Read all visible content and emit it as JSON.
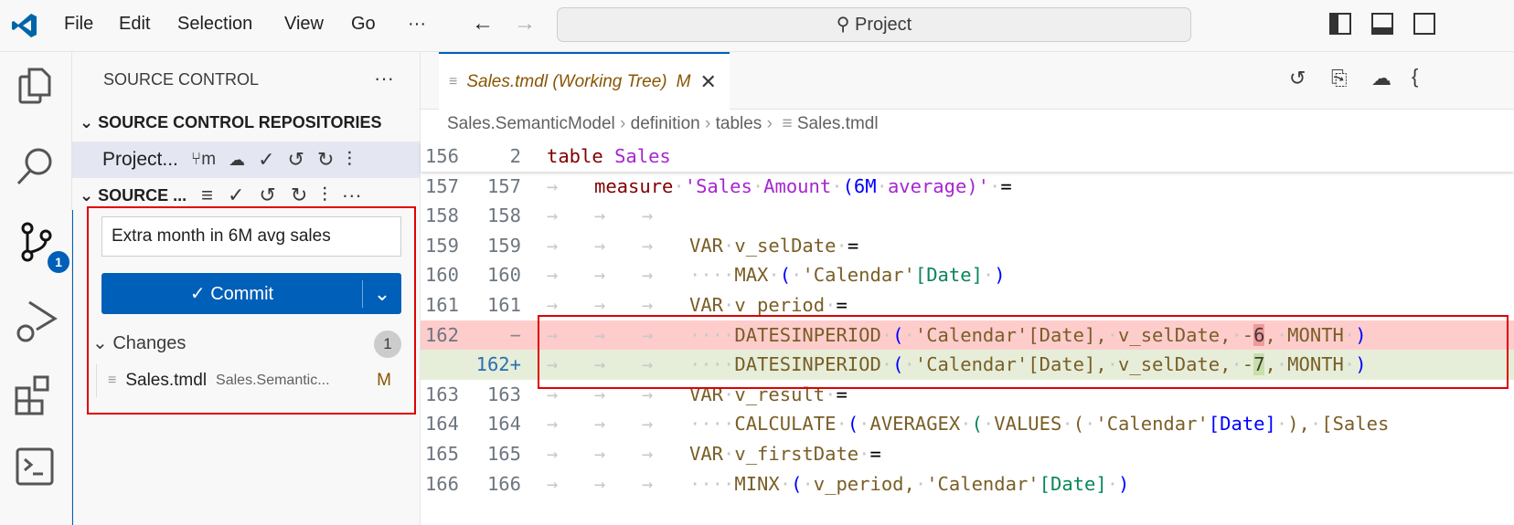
{
  "titlebar": {
    "menu": [
      "File",
      "Edit",
      "Selection",
      "View",
      "Go",
      "···"
    ],
    "search": "Project"
  },
  "activity": {
    "badge": "1"
  },
  "sidebar": {
    "title": "SOURCE CONTROL",
    "repos_header": "SOURCE CONTROL REPOSITORIES",
    "repo_name": "Project...",
    "repo_branch": "m",
    "section_header": "SOURCE ...",
    "commit_message": "Extra month in 6M avg sales",
    "commit_label": "✓ Commit",
    "changes_label": "Changes",
    "changes_count": "1",
    "file": {
      "name": "Sales.tmdl",
      "path": "Sales.Semantic...",
      "status": "M"
    }
  },
  "editor": {
    "tab": {
      "title": "Sales.tmdl (Working Tree)",
      "status": "M"
    },
    "breadcrumb": [
      "Sales.SemanticModel",
      "definition",
      "tables",
      "Sales.tmdl"
    ],
    "lines": [
      {
        "o": "156",
        "m": "2",
        "tabs": 0,
        "sp": 0,
        "t": [
          [
            "table",
            "kw"
          ],
          [
            " ",
            "s"
          ],
          [
            "Sales",
            "nm"
          ]
        ]
      },
      {
        "o": "157",
        "m": "157",
        "tabs": 1,
        "sp": 0,
        "t": [
          [
            "measure",
            "kw"
          ],
          [
            " ",
            "ws"
          ],
          [
            "'Sales",
            "nm"
          ],
          [
            " ",
            "ws"
          ],
          [
            "Amount",
            "nm"
          ],
          [
            " ",
            "ws"
          ],
          [
            "(6M",
            "bl"
          ],
          [
            " ",
            "ws"
          ],
          [
            "average)'",
            "nm"
          ],
          [
            " ",
            "ws"
          ],
          [
            "=",
            "op"
          ]
        ]
      },
      {
        "o": "158",
        "m": "158",
        "tabs": 3,
        "sp": 0,
        "t": []
      },
      {
        "o": "159",
        "m": "159",
        "tabs": 3,
        "sp": 0,
        "t": [
          [
            "VAR",
            "id"
          ],
          [
            " ",
            "ws"
          ],
          [
            "v_selDate",
            "id"
          ],
          [
            " ",
            "ws"
          ],
          [
            "=",
            "op"
          ]
        ]
      },
      {
        "o": "160",
        "m": "160",
        "tabs": 3,
        "sp": 4,
        "t": [
          [
            "MAX",
            "id"
          ],
          [
            " ",
            "ws"
          ],
          [
            "(",
            "bl"
          ],
          [
            " ",
            "ws"
          ],
          [
            "'Calendar'",
            "br"
          ],
          [
            "[Date]",
            "gr"
          ],
          [
            " ",
            "ws"
          ],
          [
            ")",
            "bl"
          ]
        ]
      },
      {
        "o": "161",
        "m": "161",
        "tabs": 3,
        "sp": 0,
        "t": [
          [
            "VAR",
            "id"
          ],
          [
            " ",
            "ws"
          ],
          [
            "v_period",
            "id"
          ],
          [
            " ",
            "ws"
          ],
          [
            "=",
            "op"
          ]
        ]
      },
      {
        "o": "162",
        "m": "",
        "mark": "−",
        "diff": "del",
        "tabs": 3,
        "sp": 4,
        "t": [
          [
            "DATESINPERIOD",
            "id"
          ],
          [
            " ",
            "ws"
          ],
          [
            "(",
            "bl"
          ],
          [
            " ",
            "ws"
          ],
          [
            "'Calendar'",
            "br"
          ],
          [
            "[Date],",
            "br"
          ],
          [
            " ",
            "ws"
          ],
          [
            "v_selDate,",
            "id"
          ],
          [
            " ",
            "ws"
          ],
          [
            "-",
            "id"
          ],
          [
            "6",
            "hdel"
          ],
          [
            ",",
            "id"
          ],
          [
            " ",
            "ws"
          ],
          [
            "MONTH",
            "id"
          ],
          [
            " ",
            "ws"
          ],
          [
            ")",
            "bl"
          ]
        ]
      },
      {
        "o": "",
        "m": "162",
        "mark": "+",
        "diff": "ins",
        "tabs": 3,
        "sp": 4,
        "t": [
          [
            "DATESINPERIOD",
            "id"
          ],
          [
            " ",
            "ws"
          ],
          [
            "(",
            "bl"
          ],
          [
            " ",
            "ws"
          ],
          [
            "'Calendar'",
            "br"
          ],
          [
            "[Date],",
            "br"
          ],
          [
            " ",
            "ws"
          ],
          [
            "v_selDate,",
            "id"
          ],
          [
            " ",
            "ws"
          ],
          [
            "-",
            "id"
          ],
          [
            "7",
            "hins"
          ],
          [
            ",",
            "id"
          ],
          [
            " ",
            "ws"
          ],
          [
            "MONTH",
            "id"
          ],
          [
            " ",
            "ws"
          ],
          [
            ")",
            "bl"
          ]
        ]
      },
      {
        "o": "163",
        "m": "163",
        "tabs": 3,
        "sp": 0,
        "t": [
          [
            "VAR",
            "id"
          ],
          [
            " ",
            "ws"
          ],
          [
            "v_result",
            "id"
          ],
          [
            " ",
            "ws"
          ],
          [
            "=",
            "op"
          ]
        ]
      },
      {
        "o": "164",
        "m": "164",
        "tabs": 3,
        "sp": 4,
        "t": [
          [
            "CALCULATE",
            "id"
          ],
          [
            " ",
            "ws"
          ],
          [
            "(",
            "bl"
          ],
          [
            " ",
            "ws"
          ],
          [
            "AVERAGEX",
            "id"
          ],
          [
            " ",
            "ws"
          ],
          [
            "(",
            "gr"
          ],
          [
            " ",
            "ws"
          ],
          [
            "VALUES",
            "id"
          ],
          [
            " ",
            "ws"
          ],
          [
            "(",
            "br"
          ],
          [
            " ",
            "ws"
          ],
          [
            "'Calendar'",
            "br"
          ],
          [
            "[Date]",
            "bl"
          ],
          [
            " ",
            "ws"
          ],
          [
            "),",
            "br"
          ],
          [
            " ",
            "ws"
          ],
          [
            "[Sales",
            "br"
          ]
        ]
      },
      {
        "o": "165",
        "m": "165",
        "tabs": 3,
        "sp": 0,
        "t": [
          [
            "VAR",
            "id"
          ],
          [
            " ",
            "ws"
          ],
          [
            "v_firstDate",
            "id"
          ],
          [
            " ",
            "ws"
          ],
          [
            "=",
            "op"
          ]
        ]
      },
      {
        "o": "166",
        "m": "166",
        "tabs": 3,
        "sp": 4,
        "t": [
          [
            "MINX",
            "id"
          ],
          [
            " ",
            "ws"
          ],
          [
            "(",
            "bl"
          ],
          [
            " ",
            "ws"
          ],
          [
            "v_period,",
            "id"
          ],
          [
            " ",
            "ws"
          ],
          [
            "'Calendar'",
            "br"
          ],
          [
            "[Date]",
            "gr"
          ],
          [
            " ",
            "ws"
          ],
          [
            ")",
            "bl"
          ]
        ]
      }
    ]
  },
  "colors": {
    "accent": "#005fb8",
    "deleted": "#ffcccc",
    "inserted": "#e6eed9",
    "highlight_box": "#e00000",
    "modified": "#895503"
  }
}
